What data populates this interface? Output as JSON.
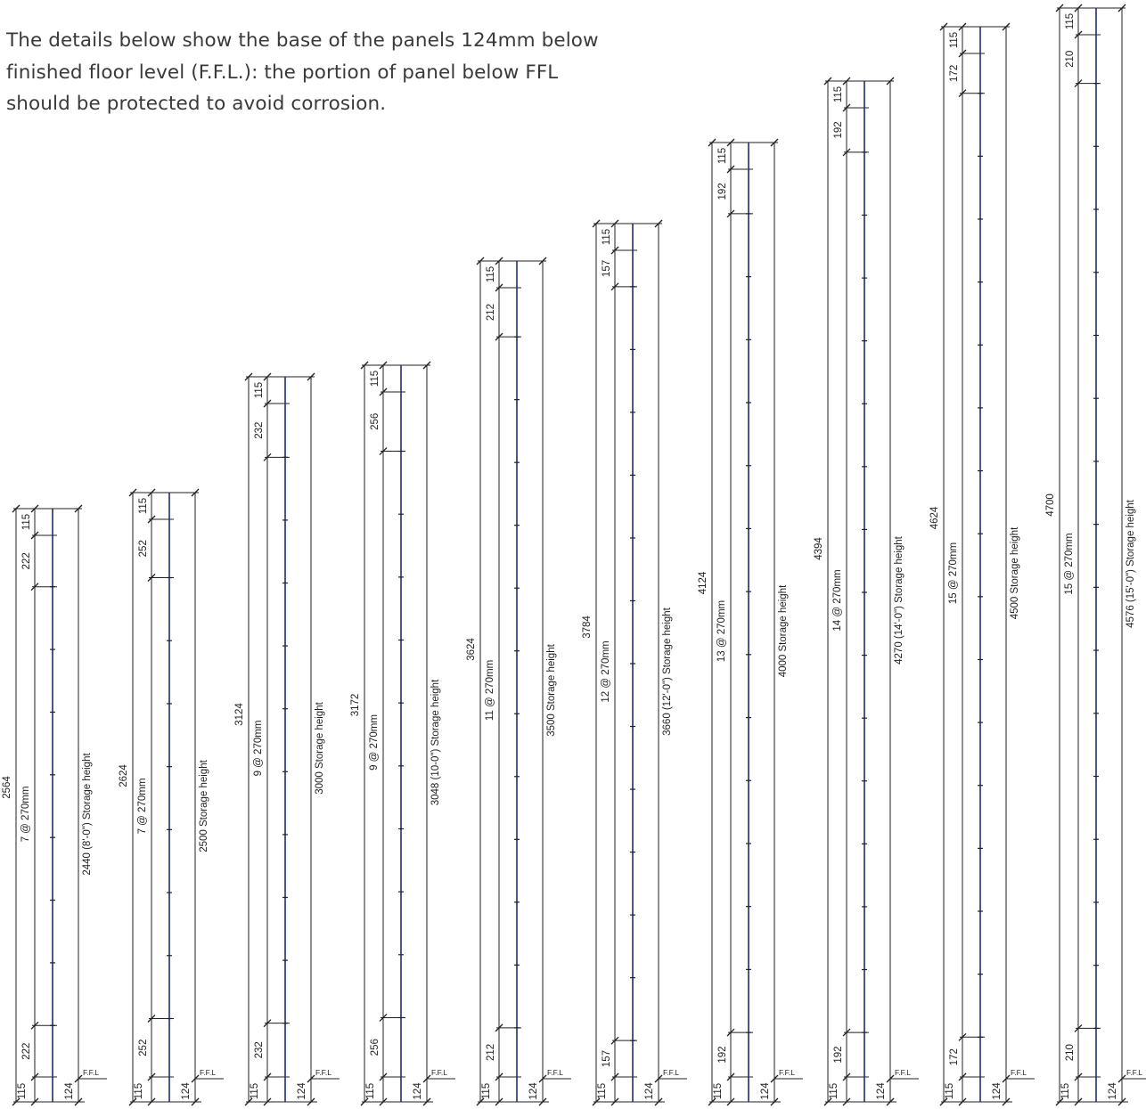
{
  "intro": {
    "lines": [
      "The details below show the base of the panels 124mm below",
      "finished floor level (F.F.L.): the portion of panel below FFL",
      "should be protected to avoid corrosion."
    ]
  },
  "ffl_label": "F.F.L",
  "colors": {
    "line": "#231f20",
    "upright": "#1f2f6b",
    "text": "#3a3a3a"
  },
  "panels": [
    {
      "total": "2564",
      "pitch": "7 @ 270mm",
      "storage": "2440 (8'-0\") Storage height",
      "top_offset": "115",
      "end_gap": "222",
      "bottom_offset": "115",
      "below_ffl": "124",
      "slots": 7
    },
    {
      "total": "2624",
      "pitch": "7 @ 270mm",
      "storage": "2500 Storage height",
      "top_offset": "115",
      "end_gap": "252",
      "bottom_offset": "115",
      "below_ffl": "124",
      "slots": 7
    },
    {
      "total": "3124",
      "pitch": "9 @ 270mm",
      "storage": "3000 Storage height",
      "top_offset": "115",
      "end_gap": "232",
      "bottom_offset": "115",
      "below_ffl": "124",
      "slots": 9
    },
    {
      "total": "3172",
      "pitch": "9 @ 270mm",
      "storage": "3048 (10-0\") Storage height",
      "top_offset": "115",
      "end_gap": "256",
      "bottom_offset": "115",
      "below_ffl": "124",
      "slots": 9
    },
    {
      "total": "3624",
      "pitch": "11 @ 270mm",
      "storage": "3500 Storage height",
      "top_offset": "115",
      "end_gap": "212",
      "bottom_offset": "115",
      "below_ffl": "124",
      "slots": 11
    },
    {
      "total": "3784",
      "pitch": "12 @ 270mm",
      "storage": "3660 (12'-0\") Storage height",
      "top_offset": "115",
      "end_gap": "157",
      "bottom_offset": "115",
      "below_ffl": "124",
      "slots": 12
    },
    {
      "total": "4124",
      "pitch": "13 @ 270mm",
      "storage": "4000 Storage height",
      "top_offset": "115",
      "end_gap": "192",
      "bottom_offset": "115",
      "below_ffl": "124",
      "slots": 13
    },
    {
      "total": "4394",
      "pitch": "14 @ 270mm",
      "storage": "4270 (14'-0\") Storage height",
      "top_offset": "115",
      "end_gap": "192",
      "bottom_offset": "115",
      "below_ffl": "124",
      "slots": 14
    },
    {
      "total": "4624",
      "pitch": "15 @ 270mm",
      "storage": "4500 Storage height",
      "top_offset": "115",
      "end_gap": "172",
      "bottom_offset": "115",
      "below_ffl": "124",
      "slots": 15
    },
    {
      "total": "4700",
      "pitch": "15 @ 270mm",
      "storage": "4576 (15'-0\") Storage height",
      "top_offset": "115",
      "end_gap": "210",
      "bottom_offset": "115",
      "below_ffl": "124",
      "slots": 15
    }
  ]
}
